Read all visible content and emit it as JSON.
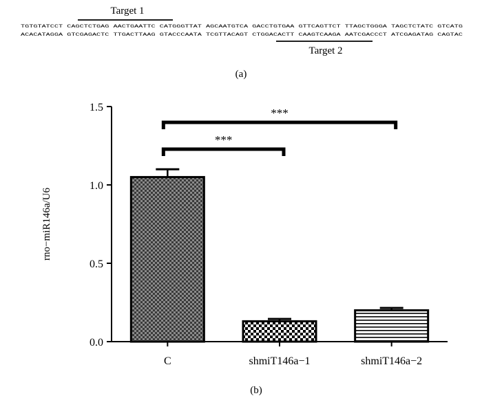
{
  "figure": {
    "panel_a_label": "(a)",
    "panel_b_label": "(b)"
  },
  "sequence": {
    "top_strand": "TGTGTATCCT CAGCTCTGAG AACTGAATTC CATGGGTTAT AGCAATGTCA GACCTGTGAA GTTCAGTTCT TTAGCTGGGA TAGCTCTATC GTCATG",
    "bottom_strand": "ACACATAGGA GTCGAGACTC TTGACTTAAG GTACCCAATA TCGTTACAGT CTGGACACTT CAAGTCAAGA AATCGACCCT ATCGAGATAG CAGTAC",
    "target1_label": "Target 1",
    "target2_label": "Target 2"
  },
  "chart_data": {
    "type": "bar",
    "categories": [
      "C",
      "shmiT146a−1",
      "shmiT146a−2"
    ],
    "values": [
      1.05,
      0.13,
      0.2
    ],
    "errors": [
      0.05,
      0.015,
      0.015
    ],
    "patterns": [
      "checker-fine",
      "checker-coarse",
      "horizontal-stripes"
    ],
    "ylabel": "rno−miR146a/U6",
    "xlabel": "",
    "ylim": [
      0,
      1.5
    ],
    "yticks": [
      "0.0",
      "0.5",
      "1.0",
      "1.5"
    ],
    "ytick_values": [
      0,
      0.5,
      1.0,
      1.5
    ],
    "grid": false,
    "significance": [
      {
        "from": 0,
        "to": 1,
        "label": "***"
      },
      {
        "from": 0,
        "to": 2,
        "label": "***"
      }
    ]
  }
}
